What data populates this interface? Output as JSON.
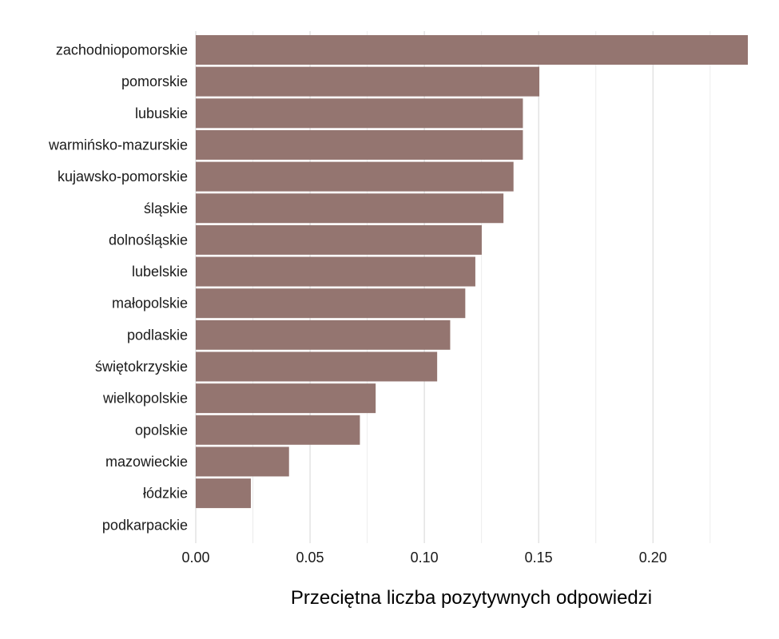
{
  "chart_data": {
    "type": "bar",
    "orientation": "horizontal",
    "title": "",
    "xlabel": "Przeciętna liczba pozytywnych odpowiedzi",
    "ylabel": "",
    "xlim": [
      0,
      0.2415
    ],
    "x_ticks": [
      "0.00",
      "0.05",
      "0.10",
      "0.15",
      "0.20"
    ],
    "x_tick_values": [
      0,
      0.05,
      0.1,
      0.15,
      0.2
    ],
    "grid": "vertical",
    "bar_color": "#947570",
    "categories": [
      "zachodniopomorskie",
      "pomorskie",
      "lubuskie",
      "warmińsko-mazurskie",
      "kujawsko-pomorskie",
      "śląskie",
      "dolnośląskie",
      "lubelskie",
      "małopolskie",
      "podlaskie",
      "świętokrzyskie",
      "wielkopolskie",
      "opolskie",
      "mazowieckie",
      "łódzkie",
      "podkarpackie"
    ],
    "values": [
      0.2415,
      0.1503,
      0.1431,
      0.1431,
      0.139,
      0.1346,
      0.1251,
      0.1223,
      0.1179,
      0.1113,
      0.1056,
      0.0787,
      0.0718,
      0.0408,
      0.0241,
      0.0
    ]
  }
}
